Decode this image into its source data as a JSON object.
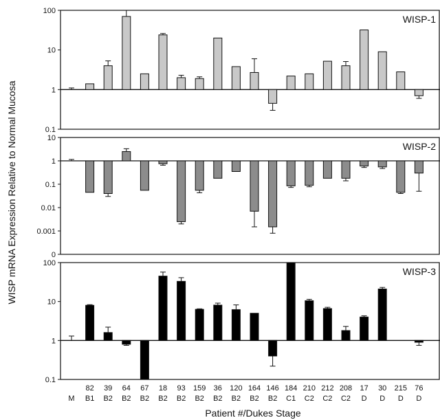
{
  "chart_data": {
    "type": "bar",
    "ylabel": "WISP mRNA Expression Relative to Normal Mucosa",
    "xlabel": "Patient #/Dukes Stage",
    "yscale": "log",
    "categories": [
      {
        "patient": "",
        "stage": "M"
      },
      {
        "patient": "82",
        "stage": "B1"
      },
      {
        "patient": "39",
        "stage": "B2"
      },
      {
        "patient": "64",
        "stage": "B2"
      },
      {
        "patient": "67",
        "stage": "B2"
      },
      {
        "patient": "18",
        "stage": "B2"
      },
      {
        "patient": "93",
        "stage": "B2"
      },
      {
        "patient": "159",
        "stage": "B2"
      },
      {
        "patient": "36",
        "stage": "B2"
      },
      {
        "patient": "120",
        "stage": "B2"
      },
      {
        "patient": "164",
        "stage": "B2"
      },
      {
        "patient": "146",
        "stage": "B2"
      },
      {
        "patient": "184",
        "stage": "C1"
      },
      {
        "patient": "210",
        "stage": "C2"
      },
      {
        "patient": "212",
        "stage": "C2"
      },
      {
        "patient": "208",
        "stage": "C2"
      },
      {
        "patient": "17",
        "stage": "D"
      },
      {
        "patient": "30",
        "stage": "D"
      },
      {
        "patient": "215",
        "stage": "D"
      },
      {
        "patient": "76",
        "stage": "D"
      }
    ],
    "panels": [
      {
        "name": "WISP-1",
        "color": "#c8c8c8",
        "ylim": [
          0.1,
          100
        ],
        "ticks": [
          "100",
          "10",
          "1",
          "0.1"
        ],
        "tick_values": [
          100,
          10,
          1,
          0.1
        ],
        "values": [
          1,
          1.4,
          4,
          70,
          2.5,
          24,
          2,
          1.9,
          20,
          3.8,
          2.7,
          0.45,
          2.2,
          2.5,
          5.2,
          4,
          32,
          9,
          2.8,
          0.7
        ],
        "errors": [
          0.1,
          0,
          1.3,
          30,
          0,
          2,
          0.3,
          0.2,
          0,
          0,
          3.3,
          0.15,
          0,
          0,
          0,
          1.1,
          0,
          0,
          0,
          0.1
        ]
      },
      {
        "name": "WISP-2",
        "color": "#8c8c8c",
        "ylim": [
          0.0001,
          10
        ],
        "ticks": [
          "10",
          "1",
          "0.1",
          "0.01",
          "0.001",
          "0"
        ],
        "tick_values": [
          10,
          1,
          0.1,
          0.01,
          0.001,
          0.0001
        ],
        "values": [
          1,
          0.045,
          0.04,
          2.5,
          0.055,
          0.75,
          0.0025,
          0.055,
          0.18,
          0.35,
          0.007,
          0.0015,
          0.085,
          0.09,
          0.18,
          0.18,
          0.6,
          0.55,
          0.045,
          0.3
        ],
        "errors": [
          0.15,
          0,
          0.01,
          0.8,
          0,
          0.1,
          0.0005,
          0.012,
          0,
          0,
          0.0055,
          0.0007,
          0.012,
          0.012,
          0,
          0.04,
          0.08,
          0.08,
          0.005,
          0.25
        ]
      },
      {
        "name": "WISP-3",
        "color": "#000000",
        "ylim": [
          0.1,
          100
        ],
        "ticks": [
          "100",
          "10",
          "1",
          "0.1"
        ],
        "tick_values": [
          100,
          10,
          1,
          0.1
        ],
        "values": [
          1,
          8,
          1.6,
          0.8,
          0.1,
          45,
          33,
          6.3,
          8.1,
          6.2,
          5,
          0.4,
          100,
          10.5,
          6.6,
          1.8,
          4,
          21,
          1,
          0.9
        ],
        "errors": [
          0.3,
          0.3,
          0.6,
          0.05,
          0,
          12,
          8,
          0.2,
          1,
          2,
          0,
          0.18,
          0,
          0.9,
          0.5,
          0.5,
          0.3,
          2,
          0,
          0.15
        ]
      }
    ]
  }
}
